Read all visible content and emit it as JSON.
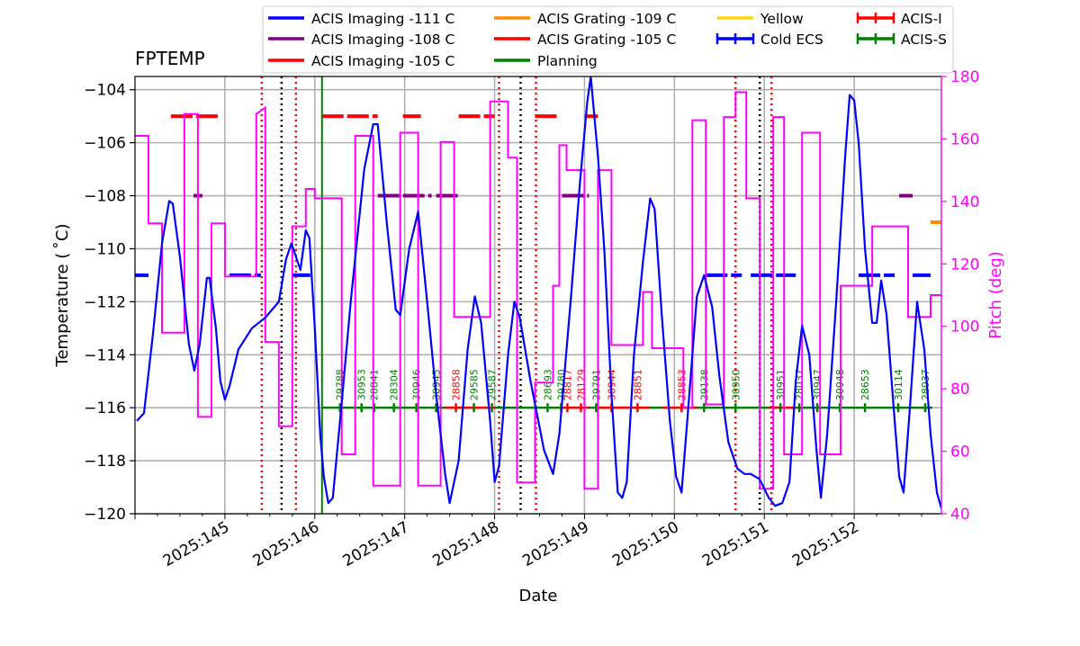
{
  "chart_data": {
    "type": "line",
    "title": "FPTEMP",
    "xlabel": "Date",
    "ylabel": "Temperature ($^\\circ$C)",
    "ylabel_display": "Temperature ( ˚C)",
    "y2label": "Pitch (deg)",
    "ylim": [
      -120,
      -103.5
    ],
    "y2lim": [
      40,
      180
    ],
    "xlim": [
      144.0,
      152.97
    ],
    "x_ticks": [
      145,
      146,
      147,
      148,
      149,
      150,
      151,
      152
    ],
    "x_tick_labels": [
      "2025:145",
      "2025:146",
      "2025:147",
      "2025:148",
      "2025:149",
      "2025:150",
      "2025:151",
      "2025:152"
    ],
    "y_ticks": [
      -120,
      -118,
      -116,
      -114,
      -112,
      -110,
      -108,
      -106,
      -104
    ],
    "y_tick_labels": [
      "−120",
      "−118",
      "−116",
      "−114",
      "−112",
      "−110",
      "−108",
      "−106",
      "−104"
    ],
    "y2_ticks": [
      40,
      60,
      80,
      100,
      120,
      140,
      160,
      180
    ],
    "y2_tick_labels": [
      "40",
      "60",
      "80",
      "100",
      "120",
      "140",
      "160",
      "180"
    ],
    "grid": true,
    "legend_position": "top, above plot (4 columns)",
    "colors": {
      "fptemp": "#0000ff",
      "pitch": "#ff00ff",
      "imaging111": "#0000ff",
      "imaging108": "#800080",
      "imaging105": "#ff0000",
      "grating109": "#ff8c00",
      "grating105": "#ff0000",
      "planning": "#008000",
      "yellow": "#ffd700",
      "cold_ecs": "#0000ff",
      "acis_i": "#ff0000",
      "acis_s": "#008000",
      "grid": "#b0b0b0",
      "pitch_axis": "#ff00ff",
      "black_lines": "#000000"
    },
    "legend": [
      {
        "label": "ACIS Imaging -111 C",
        "color": "#0000ff",
        "kind": "line"
      },
      {
        "label": "ACIS Imaging -108 C",
        "color": "#800080",
        "kind": "line"
      },
      {
        "label": "ACIS Imaging -105 C",
        "color": "#ff0000",
        "kind": "line"
      },
      {
        "label": "ACIS Grating -109 C",
        "color": "#ff8c00",
        "kind": "line"
      },
      {
        "label": "ACIS Grating -105 C",
        "color": "#ff0000",
        "kind": "line"
      },
      {
        "label": "Planning",
        "color": "#008000",
        "kind": "line"
      },
      {
        "label": "Yellow",
        "color": "#ffd700",
        "kind": "line"
      },
      {
        "label": "Cold ECS",
        "color": "#0000ff",
        "kind": "errbar"
      },
      {
        "label": "ACIS-I",
        "color": "#ff0000",
        "kind": "errbar"
      },
      {
        "label": "ACIS-S",
        "color": "#008000",
        "kind": "errbar"
      }
    ],
    "fptemp_series": [
      [
        144.02,
        -116.5
      ],
      [
        144.1,
        -116.2
      ],
      [
        144.2,
        -113.2
      ],
      [
        144.3,
        -109.8
      ],
      [
        144.38,
        -108.2
      ],
      [
        144.42,
        -108.3
      ],
      [
        144.5,
        -110.3
      ],
      [
        144.6,
        -113.6
      ],
      [
        144.66,
        -114.6
      ],
      [
        144.72,
        -113.6
      ],
      [
        144.8,
        -111.1
      ],
      [
        144.83,
        -111.1
      ],
      [
        144.9,
        -113.0
      ],
      [
        144.95,
        -115.0
      ],
      [
        145.0,
        -115.7
      ],
      [
        145.05,
        -115.2
      ],
      [
        145.15,
        -113.8
      ],
      [
        145.3,
        -113.0
      ],
      [
        145.45,
        -112.6
      ],
      [
        145.6,
        -112.0
      ],
      [
        145.68,
        -110.4
      ],
      [
        145.74,
        -109.8
      ],
      [
        145.78,
        -110.2
      ],
      [
        145.84,
        -110.8
      ],
      [
        145.9,
        -109.3
      ],
      [
        145.94,
        -109.6
      ],
      [
        146.0,
        -113.0
      ],
      [
        146.06,
        -117.0
      ],
      [
        146.1,
        -118.6
      ],
      [
        146.15,
        -119.6
      ],
      [
        146.2,
        -119.4
      ],
      [
        146.3,
        -115.8
      ],
      [
        146.4,
        -112.0
      ],
      [
        146.55,
        -107.0
      ],
      [
        146.65,
        -105.3
      ],
      [
        146.7,
        -105.3
      ],
      [
        146.8,
        -109.0
      ],
      [
        146.9,
        -112.3
      ],
      [
        146.95,
        -112.5
      ],
      [
        147.05,
        -110.0
      ],
      [
        147.15,
        -108.6
      ],
      [
        147.25,
        -112.0
      ],
      [
        147.35,
        -115.5
      ],
      [
        147.45,
        -118.5
      ],
      [
        147.5,
        -119.6
      ],
      [
        147.6,
        -118.0
      ],
      [
        147.7,
        -113.8
      ],
      [
        147.78,
        -111.8
      ],
      [
        147.85,
        -112.8
      ],
      [
        147.95,
        -116.5
      ],
      [
        148.0,
        -118.8
      ],
      [
        148.05,
        -118.2
      ],
      [
        148.15,
        -114.0
      ],
      [
        148.22,
        -112.0
      ],
      [
        148.28,
        -112.6
      ],
      [
        148.4,
        -115.0
      ],
      [
        148.55,
        -117.6
      ],
      [
        148.65,
        -118.5
      ],
      [
        148.72,
        -117.0
      ],
      [
        148.85,
        -111.8
      ],
      [
        148.95,
        -107.5
      ],
      [
        149.03,
        -104.5
      ],
      [
        149.07,
        -103.5
      ],
      [
        149.15,
        -106.5
      ],
      [
        149.22,
        -110.0
      ],
      [
        149.3,
        -115.5
      ],
      [
        149.37,
        -119.2
      ],
      [
        149.42,
        -119.4
      ],
      [
        149.47,
        -118.8
      ],
      [
        149.55,
        -114.0
      ],
      [
        149.65,
        -110.5
      ],
      [
        149.73,
        -108.1
      ],
      [
        149.78,
        -108.5
      ],
      [
        149.86,
        -112.5
      ],
      [
        149.95,
        -116.5
      ],
      [
        150.02,
        -118.6
      ],
      [
        150.08,
        -119.2
      ],
      [
        150.15,
        -116.2
      ],
      [
        150.25,
        -111.8
      ],
      [
        150.33,
        -111.0
      ],
      [
        150.42,
        -112.2
      ],
      [
        150.5,
        -114.8
      ],
      [
        150.6,
        -117.3
      ],
      [
        150.7,
        -118.3
      ],
      [
        150.78,
        -118.5
      ],
      [
        150.85,
        -118.5
      ],
      [
        150.95,
        -118.7
      ],
      [
        151.05,
        -119.4
      ],
      [
        151.12,
        -119.7
      ],
      [
        151.2,
        -119.6
      ],
      [
        151.28,
        -118.8
      ],
      [
        151.35,
        -115.0
      ],
      [
        151.42,
        -112.9
      ],
      [
        151.5,
        -114.0
      ],
      [
        151.58,
        -117.6
      ],
      [
        151.63,
        -119.4
      ],
      [
        151.7,
        -117.0
      ],
      [
        151.8,
        -112.0
      ],
      [
        151.9,
        -106.5
      ],
      [
        151.95,
        -104.2
      ],
      [
        152.0,
        -104.4
      ],
      [
        152.05,
        -106.0
      ],
      [
        152.12,
        -110.0
      ],
      [
        152.2,
        -112.8
      ],
      [
        152.25,
        -112.8
      ],
      [
        152.3,
        -111.2
      ],
      [
        152.36,
        -112.5
      ],
      [
        152.45,
        -116.5
      ],
      [
        152.5,
        -118.6
      ],
      [
        152.55,
        -119.2
      ],
      [
        152.62,
        -116.0
      ],
      [
        152.7,
        -112.0
      ],
      [
        152.78,
        -113.8
      ],
      [
        152.85,
        -117.0
      ],
      [
        152.92,
        -119.2
      ],
      [
        152.97,
        -119.8
      ]
    ],
    "pitch_series": [
      [
        144.0,
        161
      ],
      [
        144.15,
        161
      ],
      [
        144.15,
        133
      ],
      [
        144.3,
        133
      ],
      [
        144.3,
        98
      ],
      [
        144.55,
        98
      ],
      [
        144.55,
        168
      ],
      [
        144.7,
        168
      ],
      [
        144.7,
        71
      ],
      [
        144.85,
        71
      ],
      [
        144.85,
        133
      ],
      [
        145.0,
        133
      ],
      [
        145.0,
        116
      ],
      [
        145.35,
        116
      ],
      [
        145.35,
        168
      ],
      [
        145.45,
        170
      ],
      [
        145.45,
        95
      ],
      [
        145.6,
        95
      ],
      [
        145.6,
        68
      ],
      [
        145.75,
        68
      ],
      [
        145.75,
        132
      ],
      [
        145.9,
        132
      ],
      [
        145.9,
        144
      ],
      [
        146.0,
        144
      ],
      [
        146.0,
        141
      ],
      [
        146.3,
        141
      ],
      [
        146.3,
        59
      ],
      [
        146.45,
        59
      ],
      [
        146.45,
        161
      ],
      [
        146.65,
        161
      ],
      [
        146.65,
        49
      ],
      [
        146.95,
        49
      ],
      [
        146.95,
        162
      ],
      [
        147.15,
        162
      ],
      [
        147.15,
        49
      ],
      [
        147.4,
        49
      ],
      [
        147.4,
        159
      ],
      [
        147.55,
        159
      ],
      [
        147.55,
        103
      ],
      [
        147.95,
        103
      ],
      [
        147.95,
        172
      ],
      [
        148.15,
        172
      ],
      [
        148.15,
        154
      ],
      [
        148.25,
        154
      ],
      [
        148.25,
        50
      ],
      [
        148.45,
        50
      ],
      [
        148.45,
        82
      ],
      [
        148.65,
        82
      ],
      [
        148.65,
        113
      ],
      [
        148.72,
        113
      ],
      [
        148.72,
        158
      ],
      [
        148.8,
        158
      ],
      [
        148.8,
        150
      ],
      [
        149.0,
        150
      ],
      [
        149.0,
        48
      ],
      [
        149.15,
        48
      ],
      [
        149.15,
        150
      ],
      [
        149.3,
        150
      ],
      [
        149.3,
        94
      ],
      [
        149.65,
        94
      ],
      [
        149.65,
        111
      ],
      [
        149.75,
        111
      ],
      [
        149.75,
        93
      ],
      [
        150.1,
        93
      ],
      [
        150.1,
        74
      ],
      [
        150.2,
        74
      ],
      [
        150.2,
        166
      ],
      [
        150.35,
        166
      ],
      [
        150.35,
        75
      ],
      [
        150.55,
        75
      ],
      [
        150.55,
        167
      ],
      [
        150.68,
        167
      ],
      [
        150.68,
        175
      ],
      [
        150.8,
        175
      ],
      [
        150.8,
        141
      ],
      [
        150.95,
        141
      ],
      [
        150.95,
        48
      ],
      [
        151.1,
        48
      ],
      [
        151.1,
        167
      ],
      [
        151.22,
        167
      ],
      [
        151.22,
        59
      ],
      [
        151.42,
        59
      ],
      [
        151.42,
        162
      ],
      [
        151.62,
        162
      ],
      [
        151.62,
        59
      ],
      [
        151.85,
        59
      ],
      [
        151.85,
        113
      ],
      [
        152.2,
        113
      ],
      [
        152.2,
        132
      ],
      [
        152.6,
        132
      ],
      [
        152.6,
        103
      ],
      [
        152.85,
        103
      ],
      [
        152.85,
        110
      ],
      [
        152.97,
        110
      ]
    ],
    "limit_segments": [
      {
        "name": "ACIS Imaging -111 C",
        "color": "#0000ff",
        "y": -111,
        "ranges": [
          [
            144.0,
            144.15
          ],
          [
            145.05,
            145.4
          ],
          [
            145.75,
            145.95
          ],
          [
            150.35,
            150.75
          ],
          [
            150.85,
            151.35
          ],
          [
            152.05,
            152.45
          ],
          [
            152.65,
            152.85
          ]
        ]
      },
      {
        "name": "ACIS Imaging -108 C",
        "color": "#800080",
        "y": -108,
        "ranges": [
          [
            144.65,
            144.75
          ],
          [
            146.7,
            147.3
          ],
          [
            147.35,
            147.6
          ],
          [
            148.75,
            149.05
          ],
          [
            152.5,
            152.65
          ]
        ]
      },
      {
        "name": "ACIS Imaging -105 C",
        "color": "#ff0000",
        "y": -105,
        "ranges": [
          [
            144.4,
            144.92
          ],
          [
            146.08,
            146.7
          ],
          [
            146.98,
            147.18
          ],
          [
            147.6,
            148.0
          ],
          [
            148.45,
            148.72
          ],
          [
            149.0,
            149.15
          ],
          [
            153.25,
            153.9
          ]
        ]
      },
      {
        "name": "ACIS Grating -109 C",
        "color": "#ff8c00",
        "y": -109,
        "ranges": [
          [
            152.85,
            153.25
          ]
        ]
      }
    ],
    "red_dotted_lines": [
      145.41,
      145.79,
      148.05,
      148.46,
      150.68,
      151.08
    ],
    "black_dotted_lines": [
      145.63,
      148.29,
      150.95
    ],
    "planning_line": 146.08,
    "obsid_bar_y": -116,
    "acis_s_bar": [
      146.08,
      152.87
    ],
    "acis_i_segments": [
      [
        147.45,
        148.0
      ],
      [
        148.72,
        149.05
      ],
      [
        149.15,
        149.72
      ],
      [
        149.87,
        150.25
      ],
      [
        151.05,
        151.35
      ]
    ],
    "obsid_labels": [
      {
        "x": 146.28,
        "label": "29788",
        "color": "#008000"
      },
      {
        "x": 146.52,
        "label": "30953",
        "color": "#008000"
      },
      {
        "x": 146.66,
        "label": "28841",
        "color": "#008000"
      },
      {
        "x": 146.88,
        "label": "28304",
        "color": "#008000"
      },
      {
        "x": 147.13,
        "label": "30946",
        "color": "#008000"
      },
      {
        "x": 147.35,
        "label": "30945",
        "color": "#008000"
      },
      {
        "x": 147.57,
        "label": "28858",
        "color": "#ff0000"
      },
      {
        "x": 147.77,
        "label": "29585",
        "color": "#008000"
      },
      {
        "x": 147.97,
        "label": "29587",
        "color": "#008000"
      },
      {
        "x": 148.59,
        "label": "28693",
        "color": "#008000"
      },
      {
        "x": 148.74,
        "label": "29780",
        "color": "#008000"
      },
      {
        "x": 148.81,
        "label": "28817",
        "color": "#ff0000"
      },
      {
        "x": 148.96,
        "label": "28129",
        "color": "#ff0000"
      },
      {
        "x": 149.13,
        "label": "29791",
        "color": "#008000"
      },
      {
        "x": 149.3,
        "label": "30944",
        "color": "#ff0000"
      },
      {
        "x": 149.59,
        "label": "28851",
        "color": "#ff0000"
      },
      {
        "x": 150.08,
        "label": "28853",
        "color": "#ff0000"
      },
      {
        "x": 150.33,
        "label": "29138",
        "color": "#008000"
      },
      {
        "x": 150.68,
        "label": "30950",
        "color": "#008000"
      },
      {
        "x": 151.18,
        "label": "30951",
        "color": "#008000"
      },
      {
        "x": 151.39,
        "label": "28037",
        "color": "#008000"
      },
      {
        "x": 151.59,
        "label": "30947",
        "color": "#008000"
      },
      {
        "x": 151.84,
        "label": "30948",
        "color": "#008000"
      },
      {
        "x": 152.12,
        "label": "28653",
        "color": "#008000"
      },
      {
        "x": 152.49,
        "label": "30114",
        "color": "#008000"
      },
      {
        "x": 152.79,
        "label": "28037",
        "color": "#008000"
      }
    ]
  }
}
